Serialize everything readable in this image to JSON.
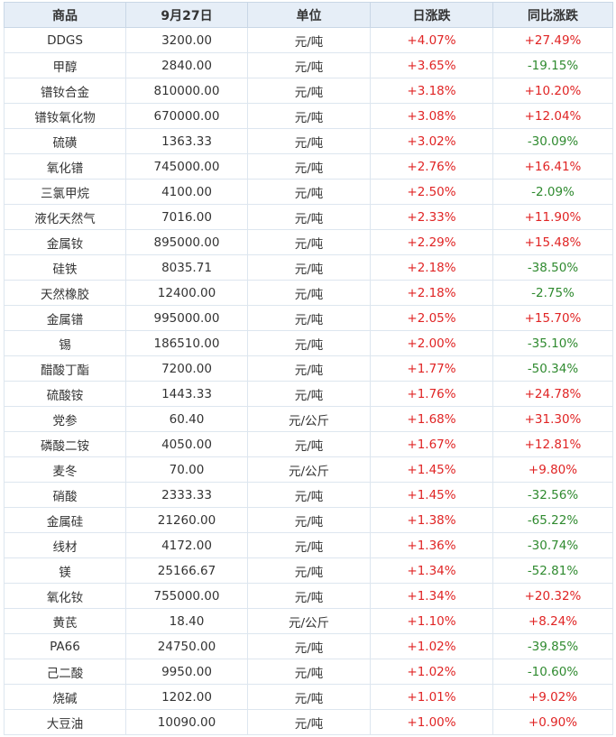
{
  "table": {
    "headers": [
      "商品",
      "9月27日",
      "单位",
      "日涨跌",
      "同比涨跌"
    ],
    "rows": [
      [
        "DDGS",
        "3200.00",
        "元/吨",
        "+4.07%",
        "+27.49%"
      ],
      [
        "甲醇",
        "2840.00",
        "元/吨",
        "+3.65%",
        "-19.15%"
      ],
      [
        "镨钕合金",
        "810000.00",
        "元/吨",
        "+3.18%",
        "+10.20%"
      ],
      [
        "镨钕氧化物",
        "670000.00",
        "元/吨",
        "+3.08%",
        "+12.04%"
      ],
      [
        "硫磺",
        "1363.33",
        "元/吨",
        "+3.02%",
        "-30.09%"
      ],
      [
        "氧化镨",
        "745000.00",
        "元/吨",
        "+2.76%",
        "+16.41%"
      ],
      [
        "三氯甲烷",
        "4100.00",
        "元/吨",
        "+2.50%",
        "-2.09%"
      ],
      [
        "液化天然气",
        "7016.00",
        "元/吨",
        "+2.33%",
        "+11.90%"
      ],
      [
        "金属钕",
        "895000.00",
        "元/吨",
        "+2.29%",
        "+15.48%"
      ],
      [
        "硅铁",
        "8035.71",
        "元/吨",
        "+2.18%",
        "-38.50%"
      ],
      [
        "天然橡胶",
        "12400.00",
        "元/吨",
        "+2.18%",
        "-2.75%"
      ],
      [
        "金属镨",
        "995000.00",
        "元/吨",
        "+2.05%",
        "+15.70%"
      ],
      [
        "锡",
        "186510.00",
        "元/吨",
        "+2.00%",
        "-35.10%"
      ],
      [
        "醋酸丁酯",
        "7200.00",
        "元/吨",
        "+1.77%",
        "-50.34%"
      ],
      [
        "硫酸铵",
        "1443.33",
        "元/吨",
        "+1.76%",
        "+24.78%"
      ],
      [
        "党参",
        "60.40",
        "元/公斤",
        "+1.68%",
        "+31.30%"
      ],
      [
        "磷酸二铵",
        "4050.00",
        "元/吨",
        "+1.67%",
        "+12.81%"
      ],
      [
        "麦冬",
        "70.00",
        "元/公斤",
        "+1.45%",
        "+9.80%"
      ],
      [
        "硝酸",
        "2333.33",
        "元/吨",
        "+1.45%",
        "-32.56%"
      ],
      [
        "金属硅",
        "21260.00",
        "元/吨",
        "+1.38%",
        "-65.22%"
      ],
      [
        "线材",
        "4172.00",
        "元/吨",
        "+1.36%",
        "-30.74%"
      ],
      [
        "镁",
        "25166.67",
        "元/吨",
        "+1.34%",
        "-52.81%"
      ],
      [
        "氧化钕",
        "755000.00",
        "元/吨",
        "+1.34%",
        "+20.32%"
      ],
      [
        "黄芪",
        "18.40",
        "元/公斤",
        "+1.10%",
        "+8.24%"
      ],
      [
        "PA66",
        "24750.00",
        "元/吨",
        "+1.02%",
        "-39.85%"
      ],
      [
        "己二酸",
        "9950.00",
        "元/吨",
        "+1.02%",
        "-10.60%"
      ],
      [
        "烧碱",
        "1202.00",
        "元/吨",
        "+1.01%",
        "+9.02%"
      ],
      [
        "大豆油",
        "10090.00",
        "元/吨",
        "+1.00%",
        "+0.90%"
      ]
    ]
  },
  "colors": {
    "up": "#e02424",
    "down": "#2f8a2f",
    "header_bg": "#e6eef7"
  }
}
